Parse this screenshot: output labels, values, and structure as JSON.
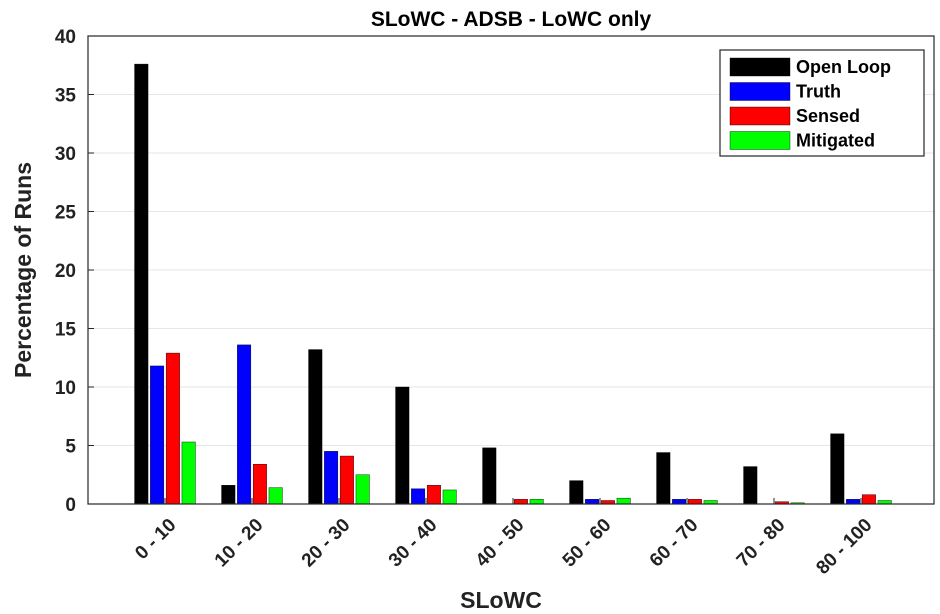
{
  "chart_data": {
    "type": "bar",
    "title": "SLoWC - ADSB - LoWC only",
    "xlabel": "SLoWC",
    "ylabel": "Percentage of Runs",
    "ylim": [
      0,
      40
    ],
    "yticks": [
      0,
      5,
      10,
      15,
      20,
      25,
      30,
      35,
      40
    ],
    "grid": true,
    "legend_position": "top-right",
    "categories": [
      "0 - 10",
      "10 - 20",
      "20 - 30",
      "30 - 40",
      "40 - 50",
      "50 - 60",
      "60 - 70",
      "70 - 80",
      "80 - 100"
    ],
    "series": [
      {
        "name": "Open Loop",
        "color": "#000000",
        "values": [
          37.6,
          1.6,
          13.2,
          10.0,
          4.8,
          2.0,
          4.4,
          3.2,
          6.0
        ]
      },
      {
        "name": "Truth",
        "color": "#0000ff",
        "values": [
          11.8,
          13.6,
          4.5,
          1.3,
          0.0,
          0.4,
          0.4,
          0.0,
          0.4
        ]
      },
      {
        "name": "Sensed",
        "color": "#ff0000",
        "values": [
          12.9,
          3.4,
          4.1,
          1.6,
          0.4,
          0.3,
          0.4,
          0.2,
          0.8
        ]
      },
      {
        "name": "Mitigated",
        "color": "#00ff00",
        "values": [
          5.3,
          1.4,
          2.5,
          1.2,
          0.4,
          0.5,
          0.3,
          0.1,
          0.3
        ]
      }
    ]
  }
}
